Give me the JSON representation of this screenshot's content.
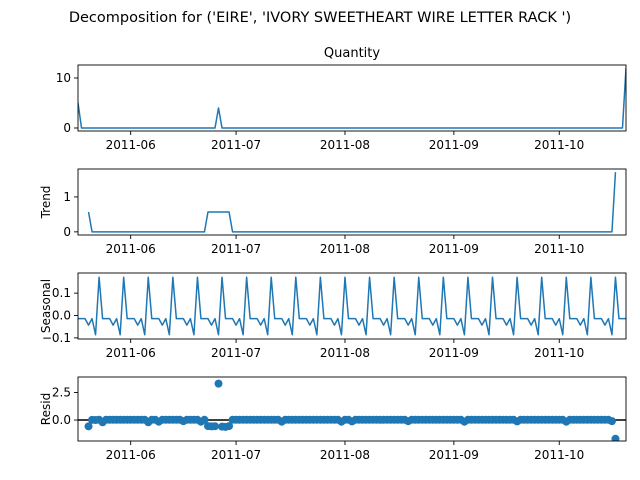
{
  "figure": {
    "suptitle": "Decomposition for ('EIRE', 'IVORY SWEETHEART WIRE LETTER RACK ')",
    "line_color": "#1f77b4",
    "zero_line_color": "#000000"
  },
  "chart_data": [
    {
      "type": "line",
      "panel": "observed",
      "title": "Quantity",
      "ylabel": "",
      "x_range": [
        "2011-05-17",
        "2011-10-20"
      ],
      "ylim": [
        -0.6,
        12.6
      ],
      "yticks": [
        0,
        10
      ],
      "ytick_labels": [
        "0",
        "10"
      ],
      "xticks": [
        "2011-06-01",
        "2011-07-01",
        "2011-08-01",
        "2011-09-01",
        "2011-10-01"
      ],
      "xtick_labels": [
        "2011-06",
        "2011-07",
        "2011-08",
        "2011-09",
        "2011-10"
      ],
      "x_start": "2011-05-17",
      "x_end": "2011-10-20",
      "baseline": 0,
      "points": [
        [
          "2011-05-17",
          5
        ],
        [
          "2011-05-18",
          0
        ],
        [
          "2011-06-25",
          0
        ],
        [
          "2011-06-26",
          4
        ],
        [
          "2011-06-27",
          0
        ],
        [
          "2011-10-19",
          0
        ],
        [
          "2011-10-20",
          12
        ]
      ]
    },
    {
      "type": "line",
      "panel": "trend",
      "title": "",
      "ylabel": "Trend",
      "x_range": [
        "2011-05-17",
        "2011-10-20"
      ],
      "ylim": [
        -0.09,
        1.8
      ],
      "yticks": [
        0,
        1
      ],
      "ytick_labels": [
        "0",
        "1"
      ],
      "xticks": [
        "2011-06-01",
        "2011-07-01",
        "2011-08-01",
        "2011-09-01",
        "2011-10-01"
      ],
      "xtick_labels": [
        "2011-06",
        "2011-07",
        "2011-08",
        "2011-09",
        "2011-10"
      ],
      "points": [
        [
          "2011-05-20",
          0.57
        ],
        [
          "2011-05-21",
          0
        ],
        [
          "2011-06-22",
          0
        ],
        [
          "2011-06-23",
          0.57
        ],
        [
          "2011-06-29",
          0.57
        ],
        [
          "2011-06-30",
          0
        ],
        [
          "2011-10-16",
          0
        ],
        [
          "2011-10-17",
          1.71
        ]
      ]
    },
    {
      "type": "line",
      "panel": "seasonal",
      "title": "",
      "ylabel": "Seasonal",
      "x_range": [
        "2011-05-17",
        "2011-10-20"
      ],
      "ylim": [
        -0.105,
        0.19
      ],
      "yticks": [
        -0.1,
        0,
        0.1
      ],
      "ytick_labels": [
        "−0.1",
        "0.0",
        "0.1"
      ],
      "xticks": [
        "2011-06-01",
        "2011-07-01",
        "2011-08-01",
        "2011-09-01",
        "2011-10-01"
      ],
      "xtick_labels": [
        "2011-06",
        "2011-07",
        "2011-08",
        "2011-09",
        "2011-10"
      ],
      "x_start": "2011-05-17",
      "x_end": "2011-10-20",
      "period_pattern": [
        -0.014,
        -0.014,
        -0.014,
        -0.043,
        -0.014,
        -0.086,
        0.171
      ],
      "peak_date": "2011-05-23"
    },
    {
      "type": "scatter",
      "panel": "resid",
      "title": "",
      "ylabel": "Resid",
      "x_range": [
        "2011-05-17",
        "2011-10-20"
      ],
      "ylim": [
        -1.9,
        3.9
      ],
      "yticks": [
        0,
        2.5
      ],
      "ytick_labels": [
        "0.0",
        "2.5"
      ],
      "xticks": [
        "2011-06-01",
        "2011-07-01",
        "2011-08-01",
        "2011-09-01",
        "2011-10-01"
      ],
      "xtick_labels": [
        "2011-06",
        "2011-07",
        "2011-08",
        "2011-09",
        "2011-10"
      ],
      "x_start": "2011-05-20",
      "x_end": "2011-10-17",
      "default_value": 0.02,
      "overrides": {
        "2011-05-20": -0.57,
        "2011-05-21": 0.01,
        "2011-05-22": 0.0,
        "2011-05-24": -0.2,
        "2011-06-06": -0.2,
        "2011-06-09": -0.15,
        "2011-06-16": -0.1,
        "2011-06-21": -0.15,
        "2011-06-23": -0.55,
        "2011-06-24": -0.58,
        "2011-06-25": -0.56,
        "2011-06-26": 3.3,
        "2011-06-27": -0.6,
        "2011-06-28": -0.62,
        "2011-06-29": -0.55,
        "2011-07-14": -0.15,
        "2011-07-31": -0.15,
        "2011-08-03": -0.12,
        "2011-08-19": -0.1,
        "2011-09-04": -0.15,
        "2011-09-19": -0.12,
        "2011-10-03": -0.15,
        "2011-10-16": -0.1,
        "2011-10-17": -1.7
      }
    }
  ]
}
